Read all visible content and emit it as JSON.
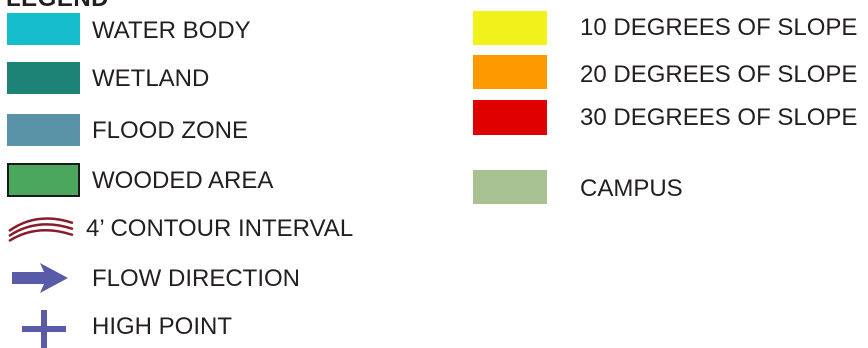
{
  "legend": {
    "title": "LEGEND",
    "left_items": [
      {
        "label": "WATER BODY",
        "symbol": "swatch",
        "color": "#15bccb"
      },
      {
        "label": "WETLAND",
        "symbol": "swatch",
        "color": "#1e8377"
      },
      {
        "label": "FLOOD ZONE",
        "symbol": "swatch",
        "color": "#5a93a7"
      },
      {
        "label": "WOODED AREA",
        "symbol": "swatch-outlined",
        "color": "#4ba65e",
        "outline": "#1a1a1a"
      },
      {
        "label": "4’ CONTOUR INTERVAL",
        "symbol": "contour-lines-icon",
        "color": "#8b1a2b"
      },
      {
        "label": "FLOW DIRECTION",
        "symbol": "arrow-right-icon",
        "color": "#5a5ba8"
      },
      {
        "label": "HIGH POINT",
        "symbol": "plus-icon",
        "color": "#5a5ba8"
      }
    ],
    "right_items": [
      {
        "label": "10 DEGREES OF SLOPE",
        "symbol": "swatch",
        "color": "#f2f21b"
      },
      {
        "label": "20 DEGREES OF SLOPE",
        "symbol": "swatch",
        "color": "#ff9900"
      },
      {
        "label": "30 DEGREES OF SLOPE",
        "symbol": "swatch",
        "color": "#e00000"
      },
      {
        "label": "CAMPUS",
        "symbol": "swatch",
        "color": "#a8c192"
      }
    ]
  }
}
